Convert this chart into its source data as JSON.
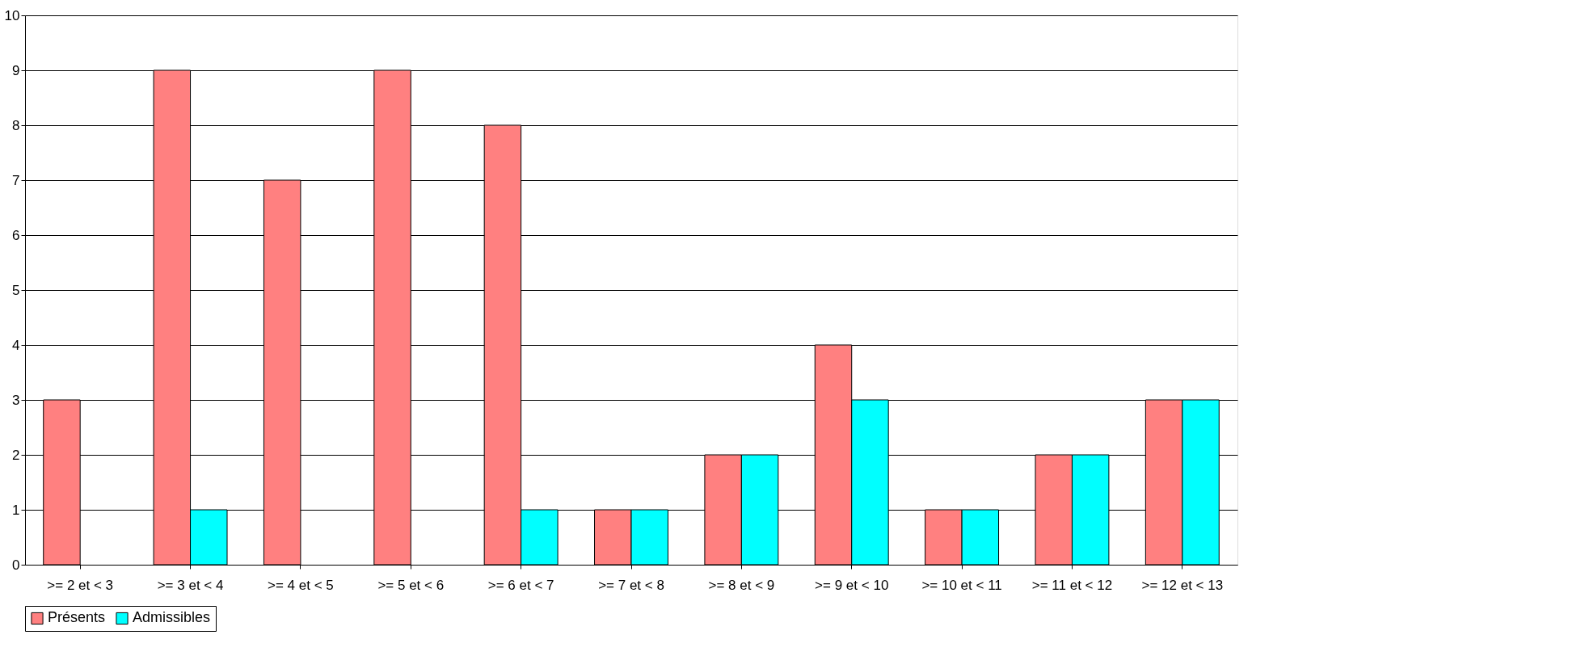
{
  "chart_data": {
    "type": "bar",
    "categories": [
      ">= 2 et < 3",
      ">= 3 et < 4",
      ">= 4 et < 5",
      ">= 5 et < 6",
      ">= 6 et < 7",
      ">= 7 et < 8",
      ">= 8 et < 9",
      ">= 9 et < 10",
      ">= 10 et < 11",
      ">= 11 et < 12",
      ">= 12 et < 13"
    ],
    "series": [
      {
        "name": "Présents",
        "color": "#ff8080",
        "values": [
          3,
          9,
          7,
          9,
          8,
          1,
          2,
          4,
          1,
          2,
          3
        ]
      },
      {
        "name": "Admissibles",
        "color": "#00ffff",
        "values": [
          null,
          1,
          null,
          null,
          1,
          1,
          2,
          3,
          1,
          2,
          3
        ]
      }
    ],
    "ylim": [
      0,
      10
    ],
    "yticks": [
      0,
      1,
      2,
      3,
      4,
      5,
      6,
      7,
      8,
      9,
      10
    ],
    "grid": "y",
    "legend": "bottom"
  }
}
